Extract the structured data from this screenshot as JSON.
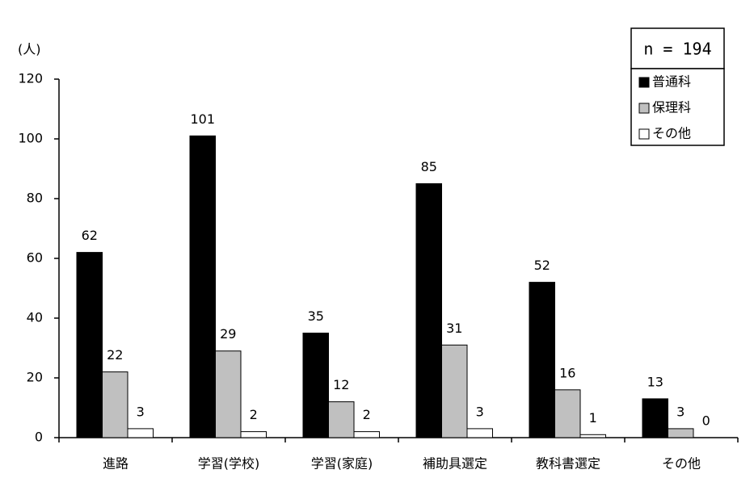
{
  "chart_data": {
    "type": "bar",
    "y_label": "(人)",
    "annotation": "n = 194",
    "categories": [
      "進路",
      "学習(学校)",
      "学習(家庭)",
      "補助具選定",
      "教科書選定",
      "その他"
    ],
    "series": [
      {
        "name": "普通科",
        "color": "#000000",
        "values": [
          62,
          101,
          35,
          85,
          52,
          13
        ]
      },
      {
        "name": "保理科",
        "color": "#c0c0c0",
        "values": [
          22,
          29,
          12,
          31,
          16,
          3
        ]
      },
      {
        "name": "その他",
        "color": "#ffffff",
        "values": [
          3,
          2,
          2,
          3,
          1,
          0
        ]
      }
    ],
    "ylim": [
      0,
      120
    ],
    "yticks": [
      0,
      20,
      40,
      60,
      80,
      100,
      120
    ],
    "grid": false,
    "legend": "upper right"
  }
}
